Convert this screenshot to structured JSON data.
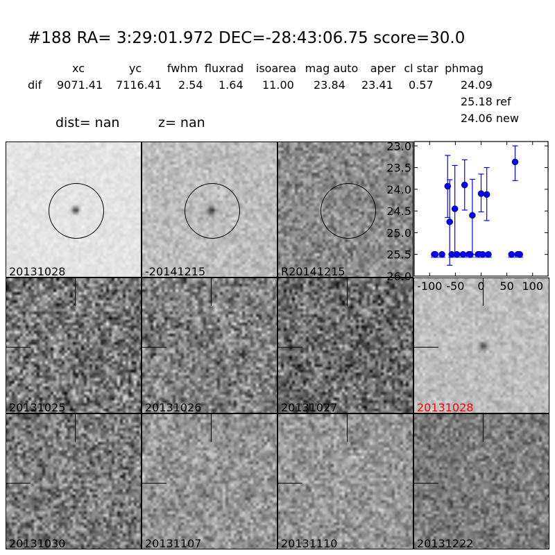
{
  "header": {
    "title": "#188   RA= 3:29:01.972 DEC=-28:43:06.75      score=30.0",
    "columns": [
      "xc",
      "yc",
      "fwhm",
      "fluxrad",
      "isoarea",
      "mag auto",
      "aper",
      "cl star",
      "phmag"
    ],
    "row_label": "dif",
    "values": [
      "9071.41",
      "7116.41",
      "2.54",
      "1.64",
      "11.00",
      "23.84",
      "23.41",
      "0.57",
      "24.09"
    ],
    "ref": "25.18 ref",
    "new": "24.06 new",
    "dist": "dist=   nan",
    "z": "z=   nan"
  },
  "panels": [
    {
      "label": "20131028",
      "type": "circle",
      "source": true
    },
    {
      "label": "-20141215",
      "type": "circle",
      "source": true
    },
    {
      "label": "R20141215",
      "type": "circle",
      "source": false
    },
    null,
    {
      "label": "20131025",
      "type": "tick"
    },
    {
      "label": "20131026",
      "type": "tick"
    },
    {
      "label": "20131027",
      "type": "tick"
    },
    {
      "label": "20131028",
      "type": "tick",
      "highlight": "#ff0000",
      "source": true
    },
    {
      "label": "20131030",
      "type": "tick"
    },
    {
      "label": "20131107",
      "type": "tick"
    },
    {
      "label": "20131110",
      "type": "tick"
    },
    {
      "label": "20131222",
      "type": "tick"
    }
  ],
  "chart_data": {
    "type": "scatter",
    "color": "#0000ff",
    "xlim": [
      -130,
      130
    ],
    "ylim": [
      26.0,
      22.9
    ],
    "y_inverted": true,
    "xticks": [
      "-100",
      "-50",
      "0",
      "50",
      "100"
    ],
    "yticks": [
      "23.0",
      "23.5",
      "24.0",
      "24.5",
      "25.0",
      "25.5",
      "26.0"
    ],
    "detections": [
      {
        "x": -65,
        "y": 23.93,
        "lo": 23.22,
        "hi": 24.65
      },
      {
        "x": -61,
        "y": 24.75,
        "lo": 23.78,
        "hi": 25.75
      },
      {
        "x": -51,
        "y": 24.45,
        "lo": 23.45,
        "hi": 25.5
      },
      {
        "x": -32,
        "y": 23.9,
        "lo": 23.32,
        "hi": 24.48
      },
      {
        "x": -17,
        "y": 24.6,
        "lo": 23.77,
        "hi": 25.5
      },
      {
        "x": 0,
        "y": 24.1,
        "lo": 23.65,
        "hi": 24.52
      },
      {
        "x": 11,
        "y": 24.12,
        "lo": 23.5,
        "hi": 24.72
      },
      {
        "x": 66,
        "y": 23.37,
        "lo": 23.0,
        "hi": 23.8
      }
    ],
    "limits": {
      "y": 25.5,
      "x": [
        -91,
        -89,
        -76,
        -57,
        -47,
        -35,
        -24,
        -21,
        -6,
        -3,
        3,
        14,
        59,
        71,
        75
      ]
    }
  }
}
